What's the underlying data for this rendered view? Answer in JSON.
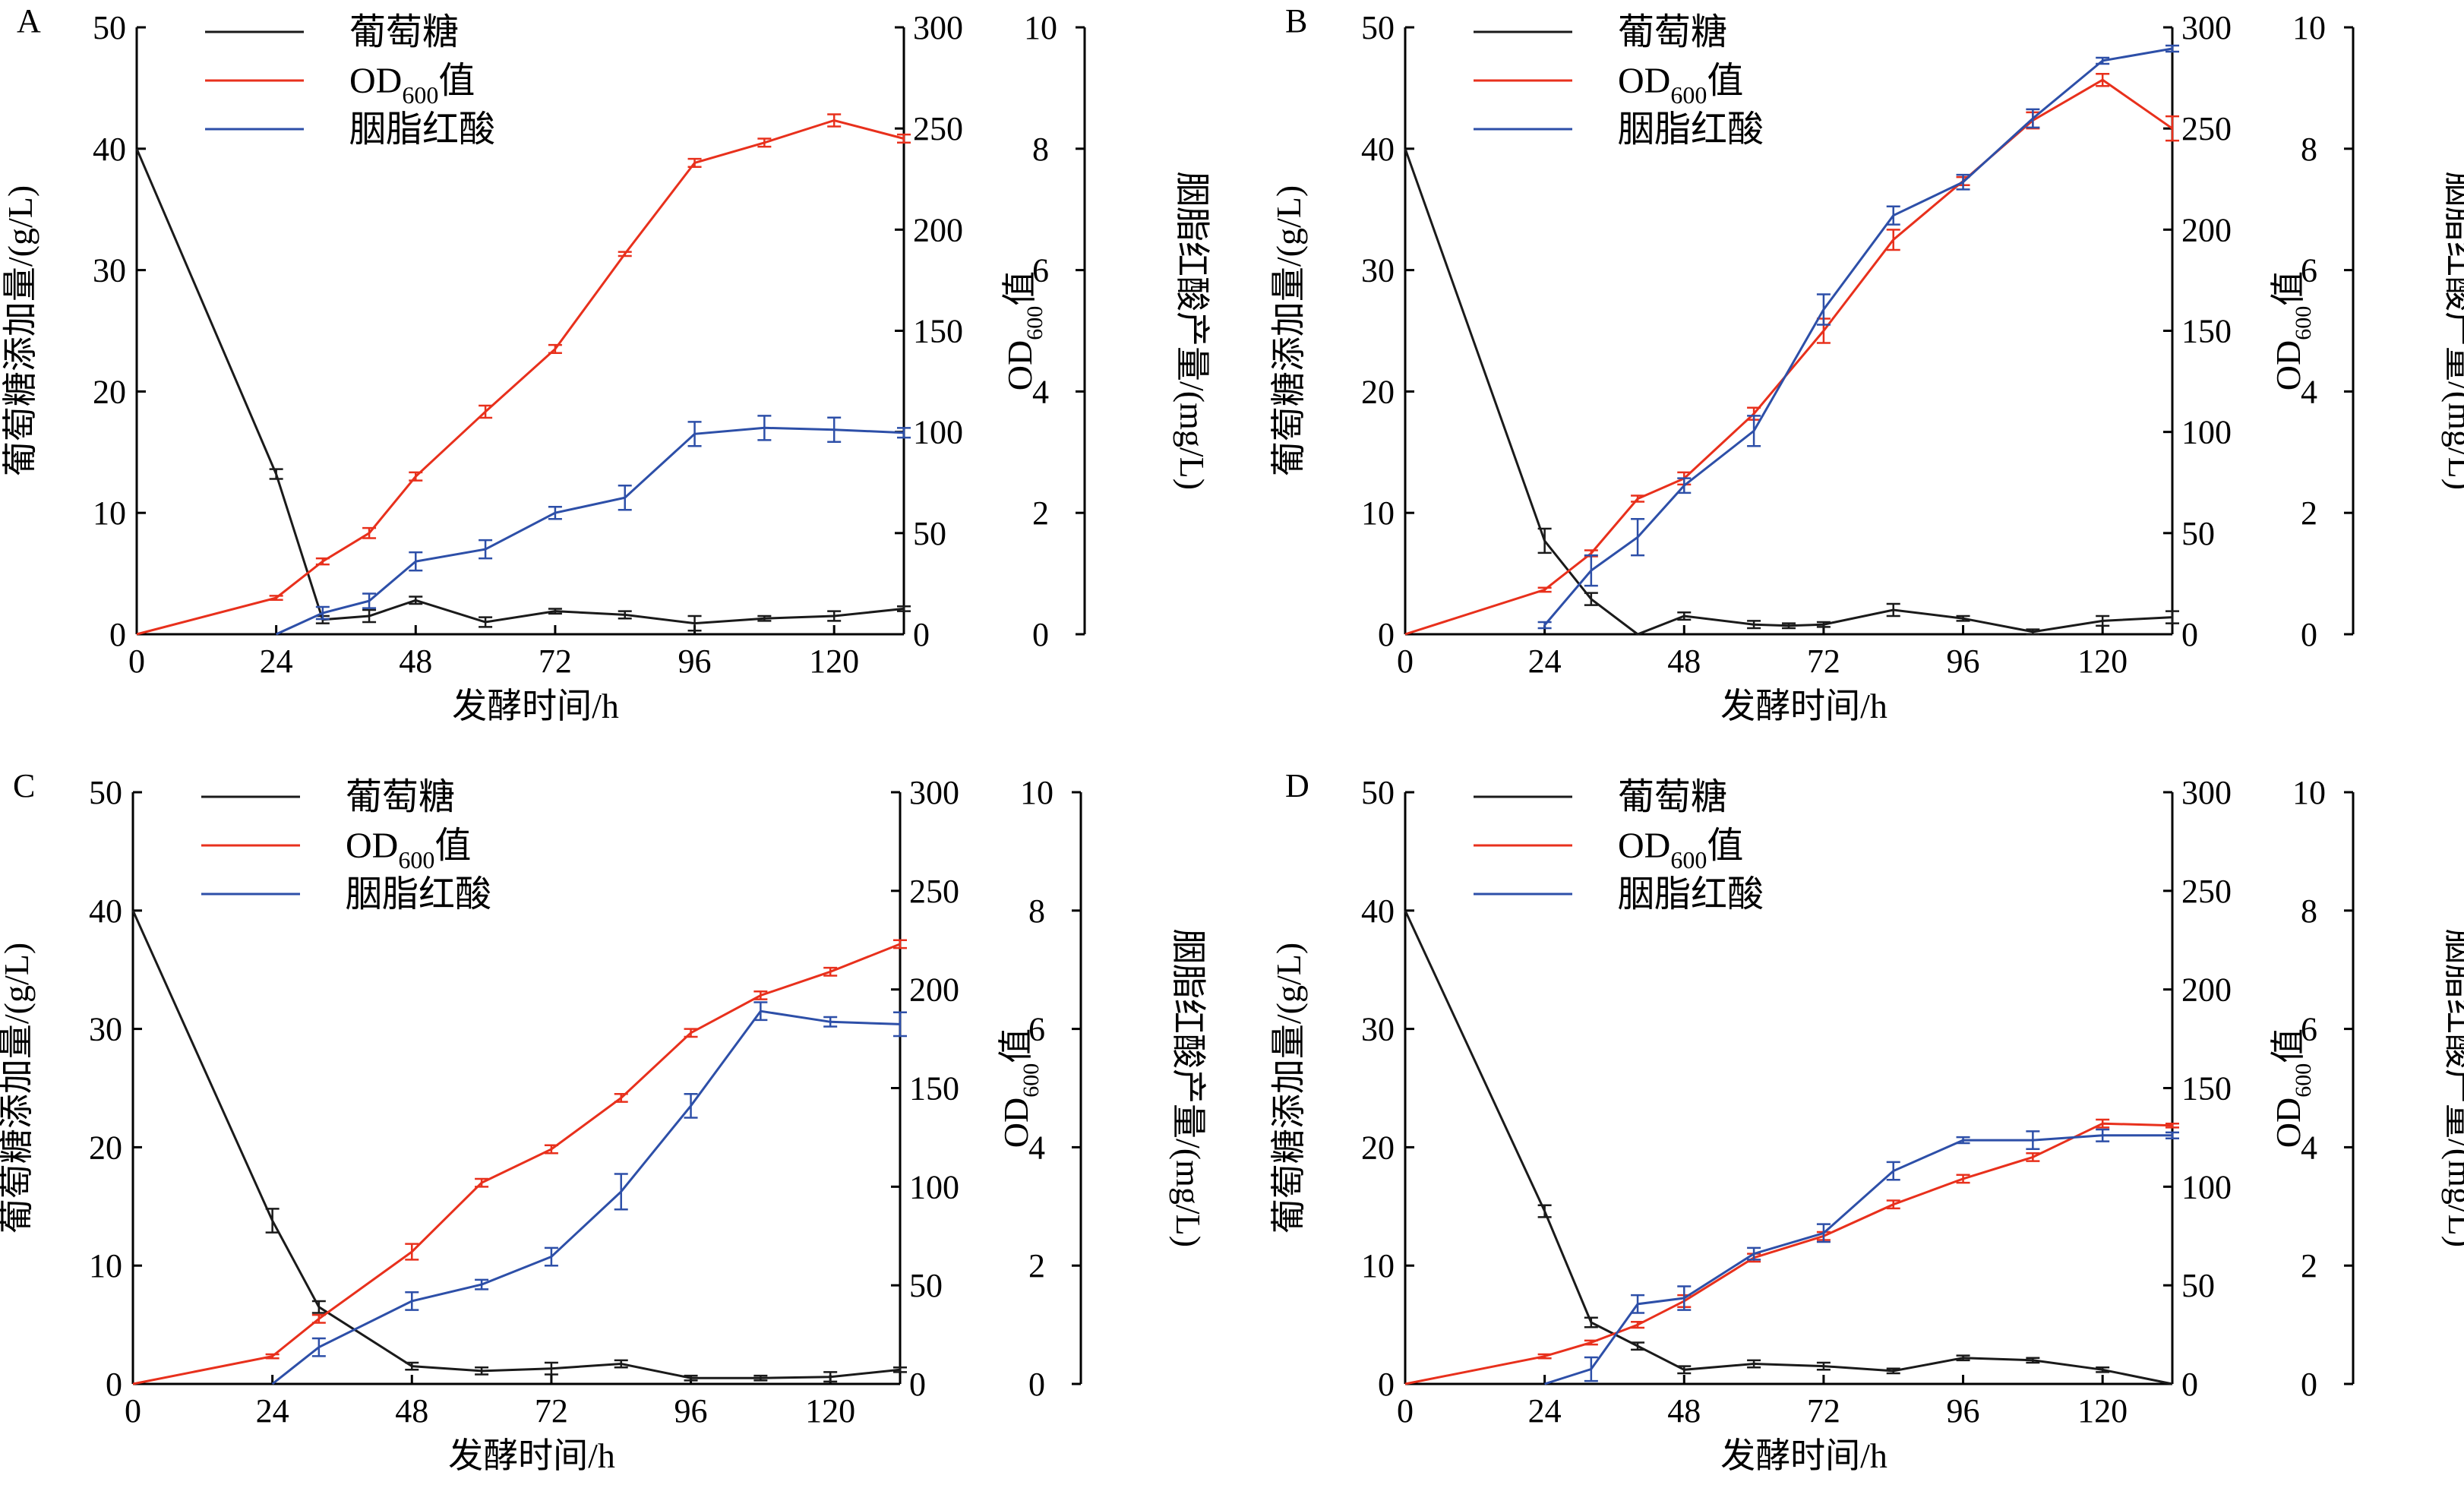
{
  "figure": {
    "xlabel": "发酵时间/h",
    "ylabel_left": "葡萄糖添加量/(g/L)",
    "ylabel_mid_main": "OD",
    "ylabel_mid_sub": "600",
    "ylabel_mid_tail": "值",
    "ylabel_right": "胭脂红酸产量/(mg/L)",
    "colors": {
      "glucose": "#1a1a1a",
      "od": "#e8301c",
      "acid": "#2d4fa8"
    }
  },
  "chart_data": [
    {
      "type": "line",
      "panel": "A",
      "xlim": [
        0,
        132
      ],
      "xticks": [
        0,
        24,
        48,
        72,
        96,
        120
      ],
      "axes": {
        "glucose": {
          "lim": [
            0,
            50
          ],
          "ticks": [
            0,
            10,
            20,
            30,
            40,
            50
          ]
        },
        "od": {
          "lim": [
            0,
            300
          ],
          "ticks": [
            0,
            50,
            100,
            150,
            200,
            250,
            300
          ]
        },
        "acid": {
          "lim": [
            0,
            10
          ],
          "ticks": [
            0,
            2,
            4,
            6,
            8,
            10
          ]
        }
      },
      "legend": {
        "position": "top-left",
        "glucose": "葡萄糖",
        "od_main": "OD",
        "od_sub": "600",
        "od_tail": "值",
        "acid": "胭脂红酸"
      },
      "series": [
        {
          "name": "葡萄糖",
          "key": "glucose",
          "axis": "glucose",
          "x": [
            0,
            24,
            32,
            40,
            48,
            60,
            72,
            84,
            96,
            108,
            120,
            132
          ],
          "y": [
            40,
            13.2,
            1.2,
            1.5,
            2.8,
            1.0,
            1.9,
            1.6,
            0.9,
            1.3,
            1.5,
            2.1
          ],
          "err": [
            0,
            0.4,
            0.3,
            0.5,
            0.3,
            0.4,
            0.2,
            0.3,
            0.6,
            0.2,
            0.4,
            0.2
          ]
        },
        {
          "name": "OD600值",
          "key": "od",
          "axis": "od",
          "x": [
            0,
            24,
            32,
            40,
            48,
            60,
            72,
            84,
            96,
            108,
            120,
            132
          ],
          "y": [
            0,
            18,
            36,
            50,
            78,
            110,
            141,
            188,
            233,
            243,
            254,
            245
          ],
          "err": [
            0,
            1,
            1.5,
            2.5,
            2,
            3,
            2,
            1,
            2,
            2,
            3,
            2
          ]
        },
        {
          "name": "胭脂红酸",
          "key": "acid",
          "axis": "acid",
          "x": [
            24,
            32,
            40,
            48,
            60,
            72,
            84,
            96,
            108,
            120,
            132
          ],
          "y": [
            0,
            0.35,
            0.55,
            1.2,
            1.4,
            2.0,
            2.25,
            3.3,
            3.4,
            3.37,
            3.32
          ],
          "err": [
            0,
            0.1,
            0.12,
            0.15,
            0.15,
            0.1,
            0.2,
            0.2,
            0.2,
            0.2,
            0.08
          ]
        }
      ]
    },
    {
      "type": "line",
      "panel": "B",
      "xlim": [
        0,
        132
      ],
      "xticks": [
        0,
        24,
        48,
        72,
        96,
        120
      ],
      "axes": {
        "glucose": {
          "lim": [
            0,
            50
          ],
          "ticks": [
            0,
            10,
            20,
            30,
            40,
            50
          ]
        },
        "od": {
          "lim": [
            0,
            300
          ],
          "ticks": [
            0,
            50,
            100,
            150,
            200,
            250,
            300
          ]
        },
        "acid": {
          "lim": [
            0,
            10
          ],
          "ticks": [
            0,
            2,
            4,
            6,
            8,
            10
          ]
        }
      },
      "legend": {
        "position": "top-left",
        "glucose": "葡萄糖",
        "od_main": "OD",
        "od_sub": "600",
        "od_tail": "值",
        "acid": "胭脂红酸"
      },
      "series": [
        {
          "name": "葡萄糖",
          "key": "glucose",
          "axis": "glucose",
          "x": [
            0,
            24,
            32,
            40,
            48,
            60,
            66,
            72,
            84,
            96,
            108,
            120,
            132
          ],
          "y": [
            40,
            7.7,
            2.9,
            0,
            1.5,
            0.8,
            0.7,
            0.8,
            2.0,
            1.3,
            0.2,
            1.1,
            1.4
          ],
          "err": [
            0,
            1.0,
            0.5,
            0,
            0.3,
            0.3,
            0.2,
            0.2,
            0.5,
            0.2,
            0.2,
            0.4,
            0.5
          ]
        },
        {
          "name": "OD600值",
          "key": "od",
          "axis": "od",
          "x": [
            0,
            24,
            32,
            40,
            48,
            60,
            72,
            84,
            96,
            108,
            120,
            132
          ],
          "y": [
            0,
            22,
            40,
            67,
            77,
            109,
            150,
            195,
            224,
            254,
            274,
            250
          ],
          "err": [
            0,
            1,
            1.5,
            1.5,
            3,
            3,
            6,
            5,
            2,
            4,
            3,
            6
          ]
        },
        {
          "name": "胭脂红酸",
          "key": "acid",
          "axis": "acid",
          "x": [
            24,
            32,
            40,
            48,
            60,
            72,
            84,
            96,
            108,
            120,
            132
          ],
          "y": [
            0.15,
            1.05,
            1.6,
            2.45,
            3.35,
            5.35,
            6.9,
            7.45,
            8.5,
            9.45,
            9.65
          ],
          "err": [
            0.05,
            0.25,
            0.3,
            0.12,
            0.25,
            0.25,
            0.15,
            0.12,
            0.15,
            0.05,
            0.05
          ]
        }
      ]
    },
    {
      "type": "line",
      "panel": "C",
      "xlim": [
        0,
        132
      ],
      "xticks": [
        0,
        24,
        48,
        72,
        96,
        120
      ],
      "axes": {
        "glucose": {
          "lim": [
            0,
            50
          ],
          "ticks": [
            0,
            10,
            20,
            30,
            40,
            50
          ]
        },
        "od": {
          "lim": [
            0,
            300
          ],
          "ticks": [
            0,
            50,
            100,
            150,
            200,
            250,
            300
          ]
        },
        "acid": {
          "lim": [
            0,
            10
          ],
          "ticks": [
            0,
            2,
            4,
            6,
            8,
            10
          ]
        }
      },
      "legend": {
        "position": "top-left",
        "glucose": "葡萄糖",
        "od_main": "OD",
        "od_sub": "600",
        "od_tail": "值",
        "acid": "胭脂红酸"
      },
      "series": [
        {
          "name": "葡萄糖",
          "key": "glucose",
          "axis": "glucose",
          "x": [
            0,
            24,
            32,
            48,
            60,
            72,
            84,
            96,
            108,
            120,
            132
          ],
          "y": [
            40,
            13.8,
            6.5,
            1.5,
            1.1,
            1.3,
            1.7,
            0.5,
            0.5,
            0.6,
            1.2
          ],
          "err": [
            0,
            1.0,
            0.5,
            0.3,
            0.3,
            0.5,
            0.3,
            0.2,
            0.2,
            0.4,
            0.2
          ]
        },
        {
          "name": "OD600值",
          "key": "od",
          "axis": "od",
          "x": [
            0,
            24,
            32,
            48,
            60,
            72,
            84,
            96,
            108,
            120,
            132
          ],
          "y": [
            0,
            14,
            33,
            67,
            102,
            119,
            145,
            178,
            197,
            209,
            223
          ],
          "err": [
            0,
            1,
            2,
            4,
            2,
            2,
            2,
            2,
            2,
            2,
            2
          ]
        },
        {
          "name": "胭脂红酸",
          "key": "acid",
          "axis": "acid",
          "x": [
            24,
            32,
            48,
            60,
            72,
            84,
            96,
            108,
            120,
            132
          ],
          "y": [
            0,
            0.62,
            1.4,
            1.68,
            2.15,
            3.25,
            4.7,
            6.3,
            6.12,
            6.08
          ],
          "err": [
            0,
            0.15,
            0.15,
            0.08,
            0.15,
            0.3,
            0.2,
            0.15,
            0.08,
            0.2
          ]
        }
      ]
    },
    {
      "type": "line",
      "panel": "D",
      "xlim": [
        0,
        132
      ],
      "xticks": [
        0,
        24,
        48,
        72,
        96,
        120
      ],
      "axes": {
        "glucose": {
          "lim": [
            0,
            50
          ],
          "ticks": [
            0,
            10,
            20,
            30,
            40,
            50
          ]
        },
        "od": {
          "lim": [
            0,
            300
          ],
          "ticks": [
            0,
            50,
            100,
            150,
            200,
            250,
            300
          ]
        },
        "acid": {
          "lim": [
            0,
            10
          ],
          "ticks": [
            0,
            2,
            4,
            6,
            8,
            10
          ]
        }
      },
      "legend": {
        "position": "top-left",
        "glucose": "葡萄糖",
        "od_main": "OD",
        "od_sub": "600",
        "od_tail": "值",
        "acid": "胭脂红酸"
      },
      "series": [
        {
          "name": "葡萄糖",
          "key": "glucose",
          "axis": "glucose",
          "x": [
            0,
            24,
            32,
            40,
            48,
            60,
            72,
            84,
            96,
            108,
            120,
            132
          ],
          "y": [
            40,
            14.6,
            5.2,
            3.2,
            1.2,
            1.7,
            1.5,
            1.1,
            2.2,
            2.0,
            1.2,
            0
          ],
          "err": [
            0,
            0.5,
            0.4,
            0.3,
            0.3,
            0.3,
            0.3,
            0.2,
            0.2,
            0.2,
            0.2,
            0
          ]
        },
        {
          "name": "OD600值",
          "key": "od",
          "axis": "od",
          "x": [
            0,
            24,
            32,
            40,
            48,
            60,
            72,
            84,
            96,
            108,
            120,
            132
          ],
          "y": [
            0,
            14,
            21,
            30,
            42,
            64,
            75,
            91,
            104,
            115,
            132,
            131
          ],
          "err": [
            0,
            1,
            1,
            1.5,
            3,
            2,
            2,
            2,
            2,
            2,
            2,
            1
          ]
        },
        {
          "name": "胭脂红酸",
          "key": "acid",
          "axis": "acid",
          "x": [
            24,
            32,
            40,
            48,
            60,
            72,
            84,
            96,
            108,
            120,
            132
          ],
          "y": [
            0,
            0.25,
            1.35,
            1.45,
            2.2,
            2.55,
            3.6,
            4.12,
            4.12,
            4.2,
            4.2
          ],
          "err": [
            0,
            0.2,
            0.15,
            0.2,
            0.1,
            0.15,
            0.15,
            0.05,
            0.15,
            0.1,
            0.05
          ]
        }
      ]
    }
  ]
}
